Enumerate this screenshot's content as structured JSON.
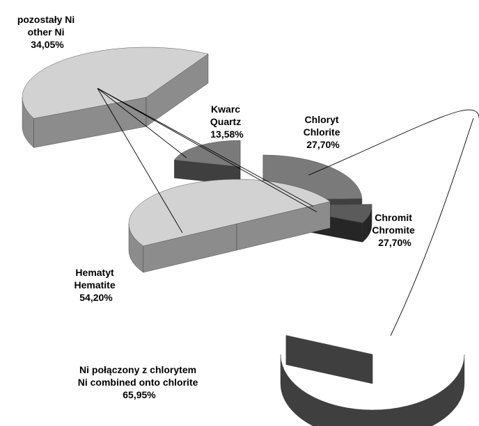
{
  "chart_data": {
    "type": "pie",
    "title": "",
    "colors": {
      "light_top": "#d2d2d2",
      "light_side": "#8c8c8c",
      "mid_top": "#7a7a7a",
      "mid_side": "#3f3f3f",
      "dark_top": "#5b5b5b",
      "dark_side": "#262626"
    },
    "pies": [
      {
        "slices": [
          {
            "label_pl": "Hematyt",
            "label_en": "Hematite",
            "value": 54.2,
            "value_label": "54,20%"
          },
          {
            "label_pl": "Kwarc",
            "label_en": "Quartz",
            "value": 13.58,
            "value_label": "13,58%"
          },
          {
            "label_pl": "Chloryt",
            "label_en": "Chlorite",
            "value": 27.7,
            "value_label": "27,70%"
          },
          {
            "label_pl": "Chromit",
            "label_en": "Chromite",
            "value": 27.7,
            "value_label": "27,70%"
          }
        ]
      },
      {
        "slices": [
          {
            "label_pl": "pozostały Ni",
            "label_en": "other Ni",
            "value": 34.05,
            "value_label": "34,05%"
          },
          {
            "label_pl": "Ni połączony z chlorytem",
            "label_en": "Ni combined onto chlorite",
            "value": 65.95,
            "value_label": "65,95%"
          }
        ]
      }
    ],
    "legend": "none",
    "grid": false
  }
}
